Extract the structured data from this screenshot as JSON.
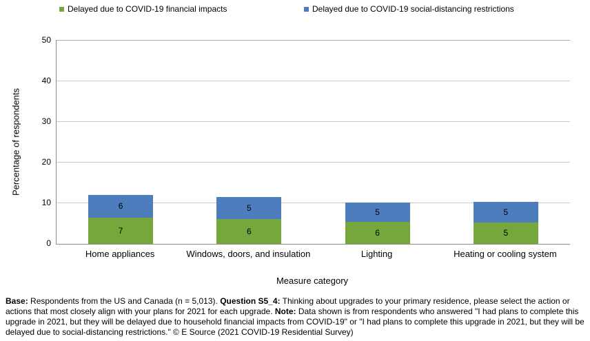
{
  "chart_data": {
    "type": "bar",
    "stacked": true,
    "title": "",
    "categories": [
      "Home appliances",
      "Windows, doors, and insulation",
      "Lighting",
      "Heating or cooling system"
    ],
    "series": [
      {
        "name": "Delayed due to COVID-19 financial impacts",
        "color": "#76A73D",
        "values": [
          7,
          6,
          6,
          5
        ],
        "estimated_values": [
          6.5,
          6.1,
          5.5,
          5.3
        ]
      },
      {
        "name": "Delayed due to COVID-19 social-distancing restrictions",
        "color": "#4E7DBE",
        "values": [
          6,
          5,
          5,
          5
        ],
        "estimated_values": [
          5.6,
          5.4,
          4.7,
          5.1
        ]
      }
    ],
    "xlabel": "Measure category",
    "ylabel": "Percentage of respondents",
    "ylim": [
      0,
      50
    ],
    "yticks": [
      0,
      10,
      20,
      30,
      40,
      50
    ],
    "grid": true,
    "legend_position": "top"
  },
  "colors": {
    "financial_green": "#76A73D",
    "social_blue": "#4E7DBE",
    "gridline": "#C9C9C9",
    "axis": "#8C8C8C",
    "text": "#000000",
    "background": "#FFFFFF"
  },
  "footnote": {
    "segments": [
      {
        "text": "Base:",
        "bold": true
      },
      {
        "text": " Respondents from the US and Canada (n = 5,013). ",
        "bold": false
      },
      {
        "text": "Question S5_4:",
        "bold": true
      },
      {
        "text": " Thinking about upgrades to your primary residence, please select the action or actions that most closely align with your plans for 2021 for each upgrade. ",
        "bold": false
      },
      {
        "text": "Note:",
        "bold": true
      },
      {
        "text": " Data shown is from respondents who answered \"I had plans to complete this upgrade in 2021, but they will be delayed due to household financial impacts from COVID-19\" or \"I had plans to complete this upgrade in 2021, but they will be delayed due to social-distancing restrictions.\" © E Source (2021 COVID-19 Residential Survey)",
        "bold": false
      }
    ]
  }
}
